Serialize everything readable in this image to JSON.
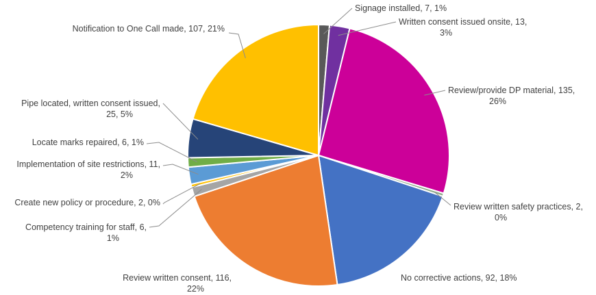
{
  "chart_data": {
    "type": "pie",
    "title": "",
    "start_angle_deg": 0,
    "direction": "clockwise",
    "slices": [
      {
        "label": "Signage installed",
        "value": 7,
        "percent": "1%",
        "color": "#595959",
        "label_lines": [
          "Signage installed, 7, 1%"
        ]
      },
      {
        "label": "Written consent issued onsite",
        "value": 13,
        "percent": "3%",
        "color": "#7030a0",
        "label_lines": [
          "Written consent issued onsite, 13,",
          "3%"
        ]
      },
      {
        "label": "Review/provide DP material",
        "value": 135,
        "percent": "26%",
        "color": "#cc0099",
        "label_lines": [
          "Review/provide DP material, 135,",
          "26%"
        ]
      },
      {
        "label": "Review written safety practices",
        "value": 2,
        "percent": "0%",
        "color": "#8faa8a",
        "label_lines": [
          "Review written safety practices, 2,",
          "0%"
        ]
      },
      {
        "label": "No corrective actions",
        "value": 92,
        "percent": "18%",
        "color": "#4472c4",
        "label_lines": [
          "No corrective actions, 92, 18%"
        ]
      },
      {
        "label": "Review written consent",
        "value": 116,
        "percent": "22%",
        "color": "#ed7d31",
        "label_lines": [
          "Review written consent, 116,",
          "22%"
        ]
      },
      {
        "label": "Competency training for staff",
        "value": 6,
        "percent": "1%",
        "color": "#a5a5a5",
        "label_lines": [
          "Competency training for staff, 6,",
          "1%"
        ]
      },
      {
        "label": "Create new policy or procedure",
        "value": 2,
        "percent": "0%",
        "color": "#ffc000",
        "label_lines": [
          "Create new policy or procedure, 2, 0%"
        ]
      },
      {
        "label": "Implementation of site restrictions",
        "value": 11,
        "percent": "2%",
        "color": "#5b9bd5",
        "label_lines": [
          "Implementation of site restrictions, 11,",
          "2%"
        ]
      },
      {
        "label": "Locate marks repaired",
        "value": 6,
        "percent": "1%",
        "color": "#70ad47",
        "label_lines": [
          "Locate marks repaired, 6, 1%"
        ]
      },
      {
        "label": "Pipe located, written consent issued",
        "value": 25,
        "percent": "5%",
        "color": "#264478",
        "label_lines": [
          "Pipe located, written consent issued,",
          "25, 5%"
        ]
      },
      {
        "label": "Notification to One Call made",
        "value": 107,
        "percent": "21%",
        "color": "#ffc000",
        "label_lines": [
          "Notification to One Call made, 107, 21%"
        ]
      }
    ]
  }
}
